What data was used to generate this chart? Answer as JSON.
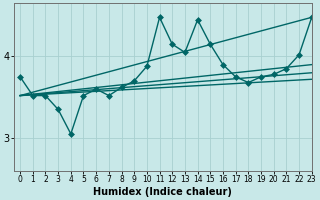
{
  "bg_color": "#c8e8e8",
  "line_color": "#006666",
  "grid_color": "#a8d0d0",
  "xlabel": "Humidex (Indice chaleur)",
  "ylim": [
    2.6,
    4.65
  ],
  "xlim": [
    -0.5,
    23
  ],
  "yticks": [
    3,
    4
  ],
  "xticks": [
    0,
    1,
    2,
    3,
    4,
    5,
    6,
    7,
    8,
    9,
    10,
    11,
    12,
    13,
    14,
    15,
    16,
    17,
    18,
    19,
    20,
    21,
    22,
    23
  ],
  "lines": [
    {
      "x": [
        0,
        1,
        2,
        3,
        4,
        5,
        6,
        7,
        8,
        9,
        10,
        11,
        12,
        13,
        14,
        15,
        16,
        17,
        18,
        19,
        20,
        21,
        22,
        23
      ],
      "y": [
        3.75,
        3.52,
        3.52,
        3.35,
        3.05,
        3.52,
        3.6,
        3.52,
        3.62,
        3.7,
        3.88,
        4.48,
        4.15,
        4.05,
        4.45,
        4.15,
        3.9,
        3.75,
        3.68,
        3.75,
        3.78,
        3.85,
        4.02,
        4.48
      ],
      "marker": true,
      "markersize": 3,
      "lw": 1.0
    },
    {
      "x": [
        0,
        23
      ],
      "y": [
        3.52,
        4.48
      ],
      "marker": false,
      "markersize": 0,
      "lw": 1.0
    },
    {
      "x": [
        0,
        23
      ],
      "y": [
        3.52,
        3.9
      ],
      "marker": false,
      "markersize": 0,
      "lw": 1.0
    },
    {
      "x": [
        0,
        23
      ],
      "y": [
        3.52,
        3.8
      ],
      "marker": false,
      "markersize": 0,
      "lw": 1.0
    },
    {
      "x": [
        0,
        23
      ],
      "y": [
        3.52,
        3.72
      ],
      "marker": false,
      "markersize": 0,
      "lw": 1.0
    }
  ]
}
